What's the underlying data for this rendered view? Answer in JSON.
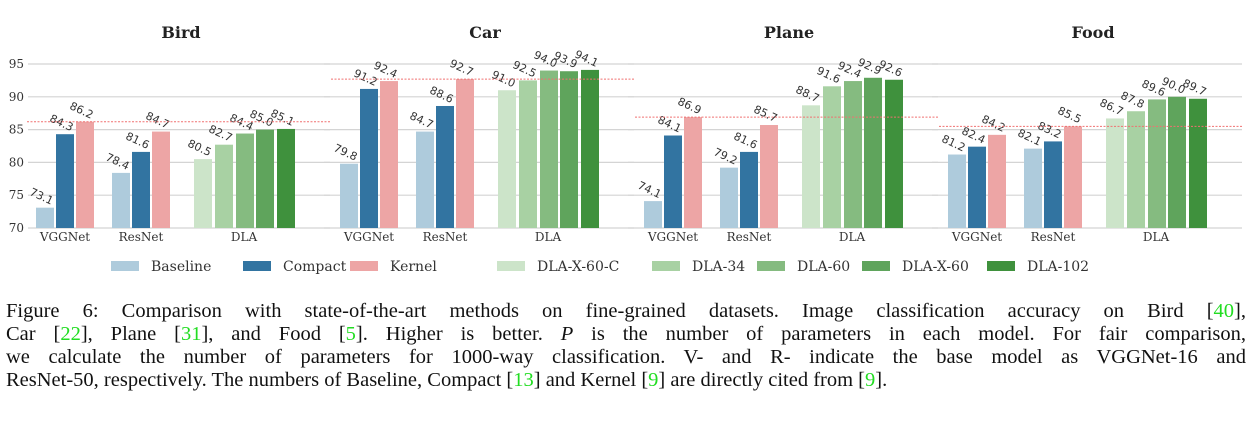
{
  "chart_data": [
    {
      "type": "bar",
      "title": "Bird",
      "groups": [
        "VGGNet",
        "ResNet",
        "DLA"
      ],
      "values": {
        "VGGNet": [
          73.1,
          84.3,
          86.2
        ],
        "ResNet": [
          78.4,
          81.6,
          84.7
        ],
        "DLA": [
          80.5,
          82.7,
          84.4,
          85.0,
          85.1
        ]
      },
      "reference_line": 86.2
    },
    {
      "type": "bar",
      "title": "Car",
      "groups": [
        "VGGNet",
        "ResNet",
        "DLA"
      ],
      "values": {
        "VGGNet": [
          79.8,
          91.2,
          92.4
        ],
        "ResNet": [
          84.7,
          88.6,
          92.7
        ],
        "DLA": [
          91.0,
          92.5,
          94.0,
          93.9,
          94.1
        ]
      },
      "reference_line": 92.7
    },
    {
      "type": "bar",
      "title": "Plane",
      "groups": [
        "VGGNet",
        "ResNet",
        "DLA"
      ],
      "values": {
        "VGGNet": [
          74.1,
          84.1,
          86.9
        ],
        "ResNet": [
          79.2,
          81.6,
          85.7
        ],
        "DLA": [
          88.7,
          91.6,
          92.4,
          92.9,
          92.6
        ]
      },
      "reference_line": 86.9
    },
    {
      "type": "bar",
      "title": "Food",
      "groups": [
        "VGGNet",
        "ResNet",
        "DLA"
      ],
      "values": {
        "VGGNet": [
          81.2,
          82.4,
          84.2
        ],
        "ResNet": [
          82.1,
          83.2,
          85.5
        ],
        "DLA": [
          86.7,
          87.8,
          89.6,
          90.0,
          89.7
        ]
      },
      "reference_line": 85.5
    }
  ],
  "axis": {
    "ylim": [
      70,
      95
    ],
    "yticks": [
      "70",
      "75",
      "80",
      "85",
      "90",
      "95"
    ],
    "grid": true
  },
  "legend": {
    "placement": "bottom",
    "items": [
      {
        "label": "Baseline",
        "color": "#aecbdc"
      },
      {
        "label": "Compact",
        "color": "#3274a1"
      },
      {
        "label": "Kernel",
        "color": "#eda5a5"
      },
      {
        "label": "DLA-X-60-C",
        "color": "#cce4c9"
      },
      {
        "label": "DLA-34",
        "color": "#a8d1a3"
      },
      {
        "label": "DLA-60",
        "color": "#85bb80"
      },
      {
        "label": "DLA-X-60",
        "color": "#5fa45c"
      },
      {
        "label": "DLA-102",
        "color": "#3f913d"
      }
    ]
  },
  "reference_line_color": "#f07070",
  "caption": {
    "lines": [
      [
        {
          "t": "Figure 6: Comparison with state-of-the-art methods on fine-grained datasets. Image classification accuracy on Bird ["
        },
        {
          "t": "40",
          "c": 1
        },
        {
          "t": "],"
        }
      ],
      [
        {
          "t": "Car ["
        },
        {
          "t": "22",
          "c": 1
        },
        {
          "t": "], Plane ["
        },
        {
          "t": "31",
          "c": 1
        },
        {
          "t": "], and Food ["
        },
        {
          "t": "5",
          "c": 1
        },
        {
          "t": "]. Higher is better. "
        },
        {
          "t": "P",
          "i": 1
        },
        {
          "t": " is the number of parameters in each model. For fair comparison,"
        }
      ],
      [
        {
          "t": "we calculate the number of parameters for 1000-way classification. V- and R- indicate the base model as VGGNet-16 and"
        }
      ],
      [
        {
          "t": "ResNet-50, respectively. The numbers of Baseline, Compact ["
        },
        {
          "t": "13",
          "c": 1
        },
        {
          "t": "] and Kernel ["
        },
        {
          "t": "9",
          "c": 1
        },
        {
          "t": "] are directly cited from ["
        },
        {
          "t": "9",
          "c": 1
        },
        {
          "t": "]."
        }
      ]
    ]
  }
}
